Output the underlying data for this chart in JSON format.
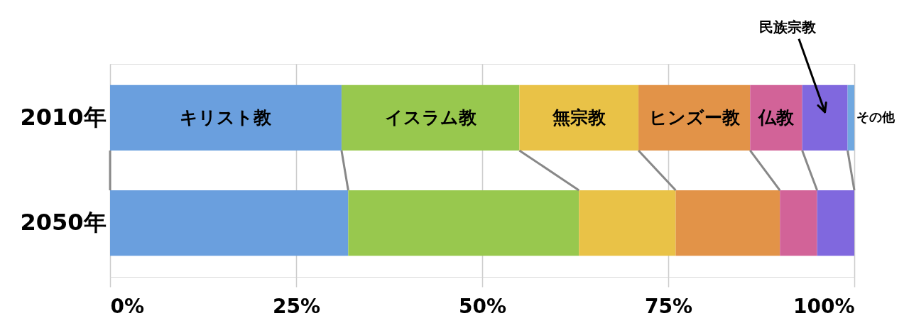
{
  "chart_data": {
    "type": "bar",
    "orientation": "horizontal",
    "stacked": true,
    "categories": [
      "2010年",
      "2050年"
    ],
    "series": [
      {
        "name": "キリスト教",
        "color": "#6a9fde",
        "values": [
          31.1,
          32.0
        ]
      },
      {
        "name": "イスラム教",
        "color": "#98c84e",
        "values": [
          23.9,
          31.0
        ]
      },
      {
        "name": "無宗教",
        "color": "#e9c247",
        "values": [
          16.0,
          13.0
        ]
      },
      {
        "name": "ヒンズー教",
        "color": "#e29348",
        "values": [
          15.0,
          14.0
        ]
      },
      {
        "name": "仏教",
        "color": "#d26398",
        "values": [
          7.0,
          5.0
        ]
      },
      {
        "name": "民族宗教",
        "color": "#8068de",
        "values": [
          6.1,
          5.0
        ]
      },
      {
        "name": "その他",
        "color": "#70a8e0",
        "values": [
          0.9,
          0.0
        ]
      }
    ],
    "xlim": [
      0,
      100
    ],
    "xticks": [
      {
        "value": 0,
        "label": "0%"
      },
      {
        "value": 25,
        "label": "25%"
      },
      {
        "value": 50,
        "label": "50%"
      },
      {
        "value": 75,
        "label": "75%"
      },
      {
        "value": 100,
        "label": "100%"
      }
    ],
    "grid": "x",
    "legend": false
  }
}
